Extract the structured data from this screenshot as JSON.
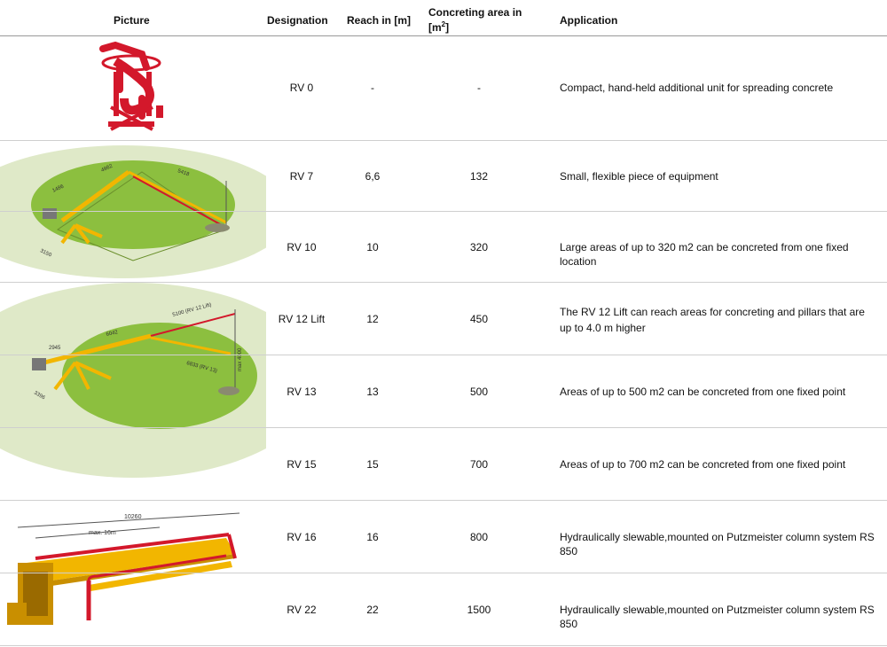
{
  "header": {
    "picture": "Picture",
    "designation": "Designation",
    "reach": "Reach in [m]",
    "area_text": "Concreting area in [m",
    "area_sup": "2",
    "area_close": "]",
    "application": "Application"
  },
  "rows": [
    {
      "designation": "RV 0",
      "reach": "-",
      "area": "-",
      "application": "Compact, hand-held additional unit for spreading concrete"
    },
    {
      "designation": "RV 7",
      "reach": "6,6",
      "area": "132",
      "application": "Small, flexible piece of equipment"
    },
    {
      "designation": "RV 10",
      "reach": "10",
      "area": "320",
      "application": "Large areas of up to 320 m2 can be concreted from one fixed location"
    },
    {
      "designation": "RV 12 Lift",
      "reach": "12",
      "area": "450",
      "application": "The RV 12 Lift can reach areas for concreting and pillars that are up to 4.0 m higher"
    },
    {
      "designation": "RV 13",
      "reach": "13",
      "area": "500",
      "application": "Areas of up to 500 m2 can be concreted from one fixed point"
    },
    {
      "designation": "RV 15",
      "reach": "15",
      "area": "700",
      "application": "Areas of up to 700 m2 can be concreted from one fixed point"
    },
    {
      "designation": "RV 16",
      "reach": "16",
      "area": "800",
      "application": "Hydraulically slewable,mounted on Putzmeister column system RS 850"
    },
    {
      "designation": "RV 22",
      "reach": "22",
      "area": "1500",
      "application": "Hydraulically slewable,mounted on Putzmeister column system RS 850"
    }
  ],
  "diagram_labels": {
    "rv7": [
      "1486",
      "4982",
      "5418",
      "3150"
    ],
    "rv12": [
      "2945",
      "6042",
      "5100 (RV 12 Lift)",
      "6833 (RV 13)",
      "max 4000",
      "3396"
    ],
    "rv16": [
      "10260",
      "max. 16m"
    ]
  },
  "colors": {
    "accent_red": "#d3182b",
    "boom_yellow": "#f2b600",
    "green": "#8cbf3f",
    "light_green": "#dfe9c8"
  }
}
